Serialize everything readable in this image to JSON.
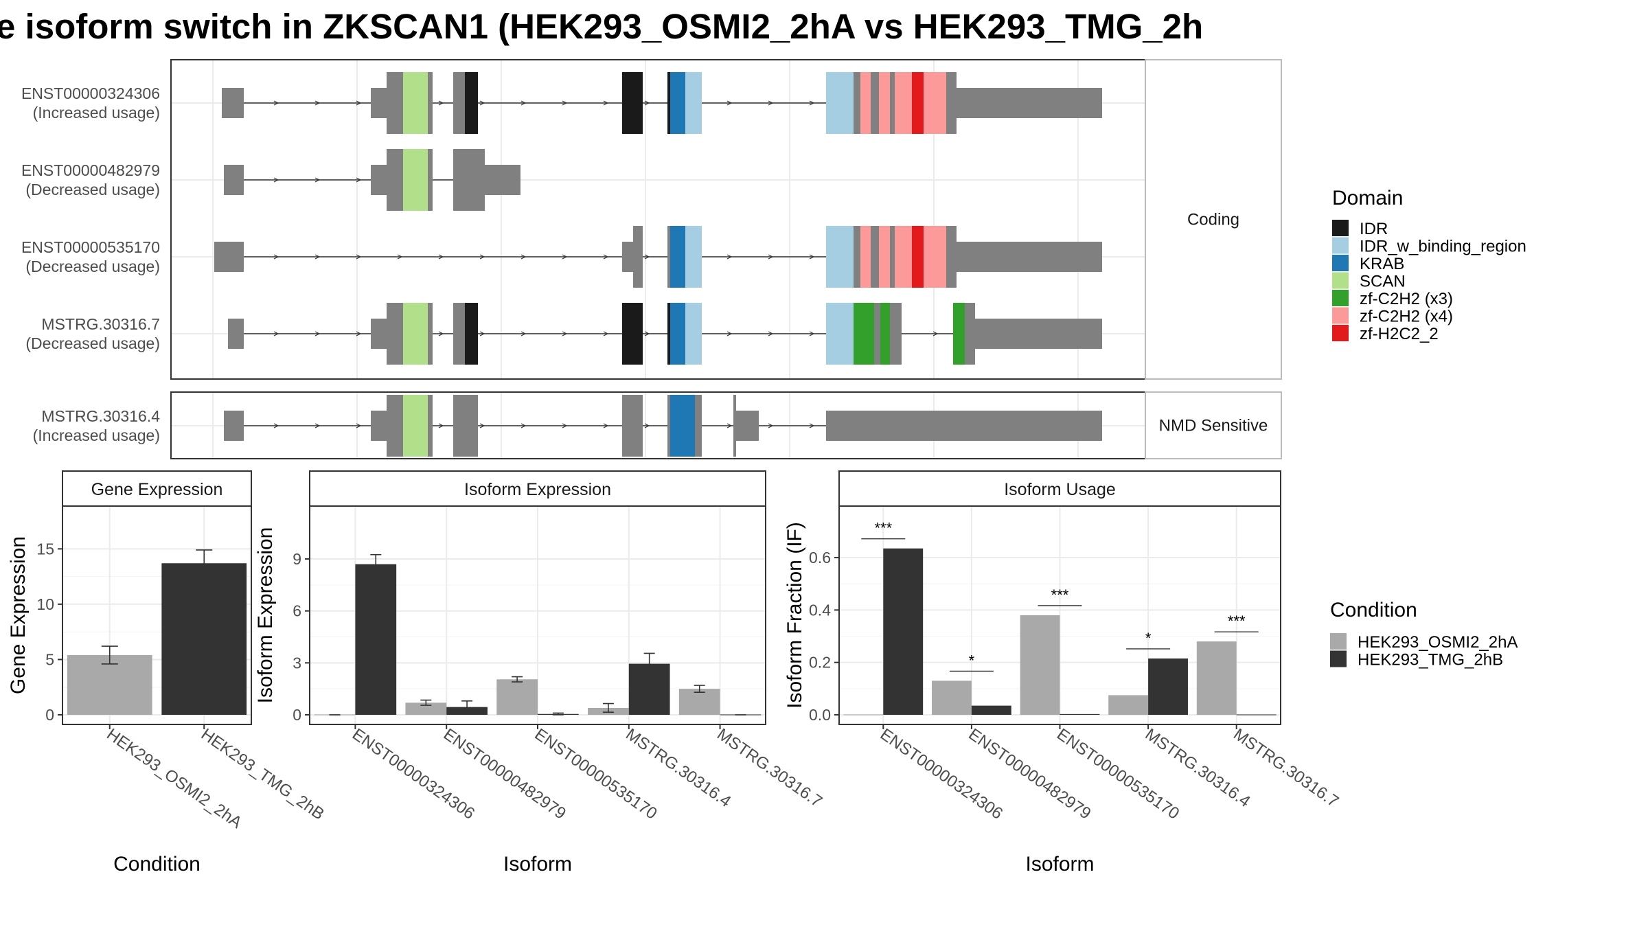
{
  "title": "e isoform switch in ZKSCAN1 (HEK293_OSMI2_2hA vs HEK293_TMG_2h",
  "structure": {
    "groups": [
      {
        "label": "Coding",
        "transcripts": [
          "ENST00000324306",
          "ENST00000482979",
          "ENST00000535170",
          "MSTRG.30316.7"
        ]
      },
      {
        "label": "NMD Sensitive",
        "transcripts": [
          "MSTRG.30316.4"
        ]
      }
    ],
    "transcripts": [
      {
        "id": "ENST00000324306",
        "usage": "(Increased usage)"
      },
      {
        "id": "ENST00000482979",
        "usage": "(Decreased usage)"
      },
      {
        "id": "ENST00000535170",
        "usage": "(Decreased usage)"
      },
      {
        "id": "MSTRG.30316.7",
        "usage": "(Decreased usage)"
      },
      {
        "id": "MSTRG.30316.4",
        "usage": "(Increased usage)"
      }
    ]
  },
  "domain_legend": {
    "title": "Domain",
    "items": [
      {
        "label": "IDR",
        "color": "#1a1a1a"
      },
      {
        "label": "IDR_w_binding_region",
        "color": "#a6cee3"
      },
      {
        "label": "KRAB",
        "color": "#1f78b4"
      },
      {
        "label": "SCAN",
        "color": "#b2df8a"
      },
      {
        "label": "zf-C2H2 (x3)",
        "color": "#33a02c"
      },
      {
        "label": "zf-C2H2 (x4)",
        "color": "#fb9a99"
      },
      {
        "label": "zf-H2C2_2",
        "color": "#e31a1c"
      }
    ]
  },
  "condition_legend": {
    "title": "Condition",
    "items": [
      {
        "label": "HEK293_OSMI2_2hA",
        "color": "#a9a9a9"
      },
      {
        "label": "HEK293_TMG_2hB",
        "color": "#333333"
      }
    ]
  },
  "chart_data": [
    {
      "type": "bar",
      "title": "Gene Expression",
      "xlabel": "Condition",
      "ylabel": "Gene Expression",
      "ylim": [
        0,
        18
      ],
      "yticks": [
        0,
        5,
        10,
        15
      ],
      "categories": [
        "HEK293_OSMI2_2hA",
        "HEK293_TMG_2hB"
      ],
      "values": [
        5.4,
        13.7
      ],
      "errors": [
        0.8,
        1.2
      ],
      "colors": [
        "#a9a9a9",
        "#333333"
      ]
    },
    {
      "type": "bar",
      "title": "Isoform Expression",
      "xlabel": "Isoform",
      "ylabel": "Isoform Expression",
      "ylim": [
        0,
        11.5
      ],
      "yticks": [
        0,
        3,
        6,
        9
      ],
      "categories": [
        "ENST00000324306",
        "ENST00000482979",
        "ENST00000535170",
        "MSTRG.30316.4",
        "MSTRG.30316.7"
      ],
      "series": [
        {
          "name": "HEK293_OSMI2_2hA",
          "values": [
            0.0,
            0.7,
            2.05,
            0.4,
            1.5
          ],
          "errors": [
            0.0,
            0.15,
            0.15,
            0.25,
            0.2
          ]
        },
        {
          "name": "HEK293_TMG_2hB",
          "values": [
            8.7,
            0.45,
            0.05,
            2.95,
            0.0
          ],
          "errors": [
            0.55,
            0.35,
            0.05,
            0.6,
            0.0
          ]
        }
      ]
    },
    {
      "type": "bar",
      "title": "Isoform Usage",
      "xlabel": "Isoform",
      "ylabel": "Isoform Fraction (IF)",
      "ylim": [
        0,
        0.76
      ],
      "yticks": [
        "0.0",
        "0.2",
        "0.4",
        "0.6"
      ],
      "categories": [
        "ENST00000324306",
        "ENST00000482979",
        "ENST00000535170",
        "MSTRG.30316.4",
        "MSTRG.30316.7"
      ],
      "series": [
        {
          "name": "HEK293_OSMI2_2hA",
          "values": [
            0.0,
            0.13,
            0.38,
            0.075,
            0.28
          ]
        },
        {
          "name": "HEK293_TMG_2hB",
          "values": [
            0.635,
            0.035,
            0.003,
            0.215,
            0.0
          ]
        }
      ],
      "significance": [
        "***",
        "*",
        "***",
        "*",
        "***"
      ]
    }
  ]
}
